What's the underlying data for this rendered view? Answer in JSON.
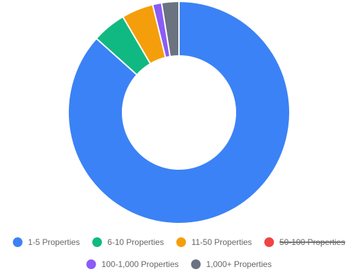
{
  "chart_data": {
    "type": "doughnut",
    "categories": [
      "1-5 Properties",
      "6-10 Properties",
      "11-50 Properties",
      "50-100 Properties",
      "100-1,000 Properties",
      "1,000+ Properties"
    ],
    "values": [
      86,
      4.9,
      4.6,
      0,
      1.3,
      2.5
    ],
    "colors": [
      "#3b82f6",
      "#10b981",
      "#f59e0b",
      "#ef4444",
      "#8b5cf6",
      "#6b7280"
    ],
    "hidden": [
      false,
      false,
      false,
      true,
      false,
      false
    ],
    "legend_position": "bottom"
  }
}
